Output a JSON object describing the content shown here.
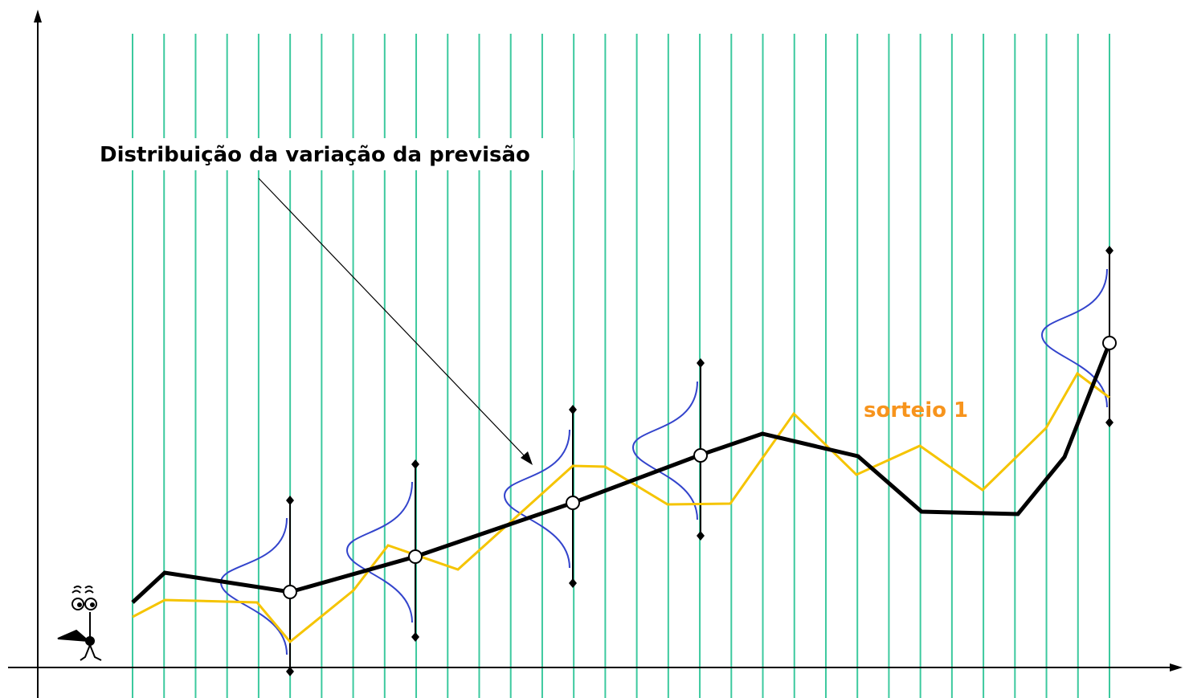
{
  "annotation": "Distribuição da variação da previsão",
  "series_label": "sorteio 1"
}
